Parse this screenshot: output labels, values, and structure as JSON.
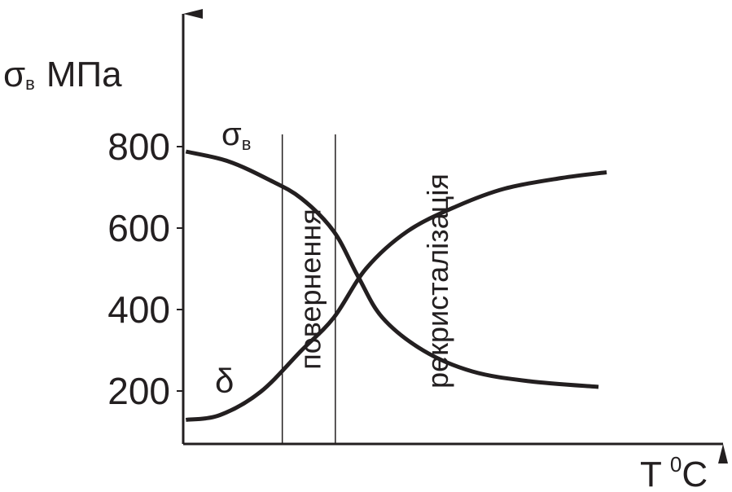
{
  "chart_data": {
    "type": "line",
    "ylabel": {
      "symbol": "σ",
      "subscript": "в",
      "unit": "МПа"
    },
    "xlabel": {
      "symbol": "T",
      "superscript": "0",
      "unit": "C"
    },
    "xlim": [
      0,
      100
    ],
    "ylim": [
      70,
      1130
    ],
    "yticks": [
      200,
      400,
      600,
      800
    ],
    "color": "#231f20",
    "series": [
      {
        "name": {
          "symbol": "σ",
          "subscript": "в"
        },
        "x": [
          0.5,
          8.3,
          15.8,
          21.8,
          27.8,
          32.3,
          36.8,
          44.4,
          53.4,
          63.9,
          76.7
        ],
        "values": [
          788,
          764,
          719,
          673,
          592,
          481,
          380,
          299,
          248,
          224,
          210
        ]
      },
      {
        "name": {
          "symbol": "δ"
        },
        "x": [
          0.5,
          6.8,
          14.3,
          21.8,
          27.8,
          33.8,
          41.4,
          50.4,
          59.4,
          69.9,
          78.2
        ],
        "values": [
          129,
          141,
          198,
          299,
          380,
          501,
          592,
          653,
          697,
          723,
          737
        ]
      }
    ],
    "regions": [
      {
        "label": "повернення",
        "x": 18.3
      },
      {
        "label": "рекристалізація",
        "x": 28.1
      }
    ]
  }
}
